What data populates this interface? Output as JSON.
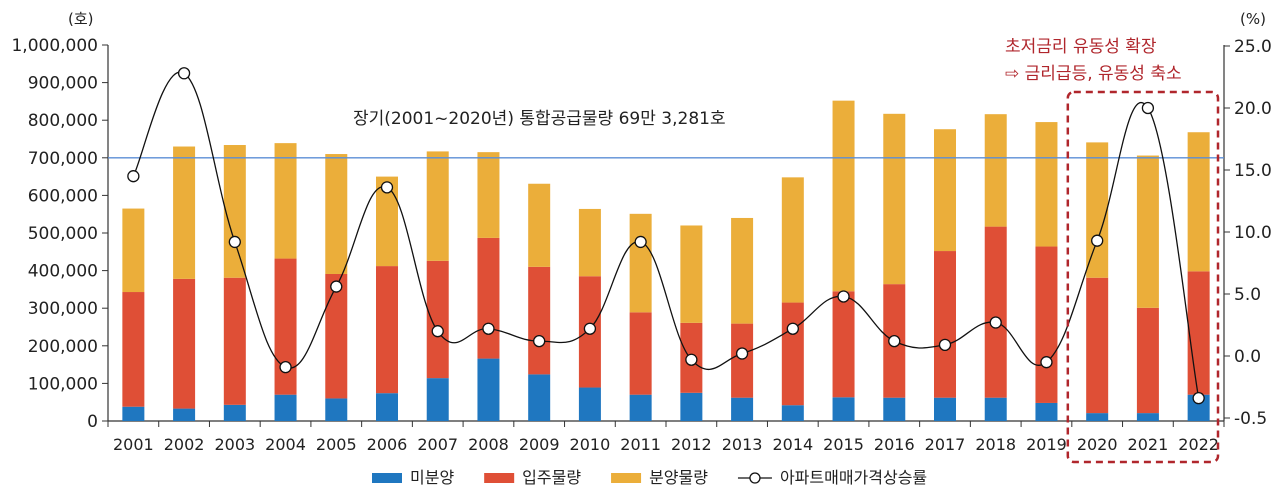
{
  "chart_data": {
    "type": "bar",
    "categories": [
      "2001",
      "2002",
      "2003",
      "2004",
      "2005",
      "2006",
      "2007",
      "2008",
      "2009",
      "2010",
      "2011",
      "2012",
      "2013",
      "2014",
      "2015",
      "2016",
      "2017",
      "2018",
      "2019",
      "2020",
      "2021",
      "2022"
    ],
    "series": [
      {
        "name": "미분양",
        "kind": "bar",
        "color": "#1f77c0",
        "values": [
          38000,
          33000,
          43000,
          70000,
          60000,
          74000,
          114000,
          166000,
          124000,
          89000,
          70000,
          75000,
          62000,
          42000,
          63000,
          62000,
          62000,
          62000,
          48000,
          21000,
          21000,
          70000
        ]
      },
      {
        "name": "입주물량",
        "kind": "bar",
        "color": "#df4f36",
        "values": [
          305000,
          345000,
          338000,
          362000,
          331000,
          338000,
          312000,
          321000,
          286000,
          296000,
          219000,
          186000,
          197000,
          273000,
          282000,
          302000,
          390000,
          455000,
          416000,
          360000,
          280000,
          328000
        ]
      },
      {
        "name": "분양물량",
        "kind": "bar",
        "color": "#ebae3a",
        "values": [
          222000,
          352000,
          353000,
          307000,
          319000,
          238000,
          291000,
          228000,
          221000,
          179000,
          262000,
          259000,
          281000,
          333000,
          507000,
          453000,
          324000,
          299000,
          331000,
          360000,
          405000,
          370000
        ]
      },
      {
        "name": "아파트매매가격상승률",
        "kind": "line",
        "axis": "right",
        "color": "#111111",
        "values": [
          14.5,
          22.8,
          9.2,
          -0.9,
          5.6,
          13.6,
          2.0,
          2.2,
          1.2,
          2.2,
          9.2,
          -0.3,
          0.2,
          2.2,
          4.8,
          1.2,
          0.9,
          2.7,
          -0.5,
          9.3,
          20.0,
          -3.4
        ]
      }
    ],
    "y_left": {
      "unit": "(호)",
      "ylim": [
        0,
        1000000
      ],
      "ticks": [
        0,
        100000,
        200000,
        300000,
        400000,
        500000,
        600000,
        700000,
        800000,
        900000,
        1000000
      ],
      "tick_labels": [
        "0",
        "100,000",
        "200,000",
        "300,000",
        "400,000",
        "500,000",
        "600,000",
        "700,000",
        "800,000",
        "900,000",
        "1,000,000"
      ]
    },
    "y_right": {
      "unit": "(%)",
      "tick_labels": [
        "25.0",
        "20.0",
        "15.0",
        "10.0",
        "5.0",
        "0.0",
        "-0.5"
      ]
    },
    "reference_line": {
      "value": 700000,
      "color": "#5b8ed6"
    },
    "annotation": "장기(2001~2020년) 통합공급물량 69만 3,281호",
    "callout": {
      "lines": [
        "초저금리 유동성 확장",
        "⇨ 금리급등, 유동성 축소"
      ],
      "color": "#b0262c",
      "highlight": [
        "2020",
        "2021",
        "2022"
      ]
    },
    "grid": false,
    "legend_position": "bottom"
  }
}
